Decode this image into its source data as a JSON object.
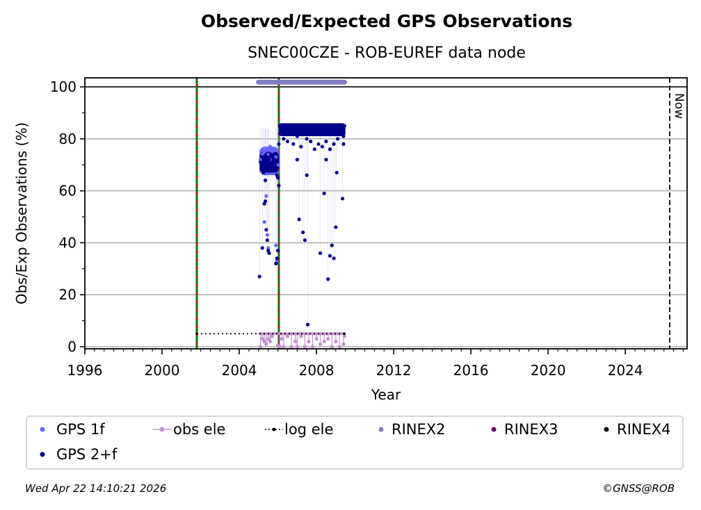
{
  "chart_data": {
    "type": "scatter",
    "title": "Observed/Expected GPS Observations",
    "subtitle": "SNEC00CZE - ROB-EUREF data node",
    "xlabel": "Year",
    "ylabel": "Obs/Exp Observations (%)",
    "xlim": [
      1996,
      2027.2
    ],
    "ylim": [
      -1,
      103.5
    ],
    "xticks": [
      1996,
      2000,
      2004,
      2008,
      2012,
      2016,
      2020,
      2024
    ],
    "xtick_labels": [
      "1996",
      "2000",
      "2004",
      "2008",
      "2012",
      "2016",
      "2020",
      "2024"
    ],
    "yticks": [
      0,
      20,
      40,
      60,
      80,
      100
    ],
    "ytick_labels": [
      "0",
      "20",
      "40",
      "60",
      "80",
      "100"
    ],
    "grid": "horizontal",
    "reference_line_y": 100,
    "now_line": {
      "x": 2026.3,
      "label": "Now"
    },
    "event_lines": [
      {
        "x": 2001.8,
        "colors": [
          "#008000",
          "#d00000"
        ]
      },
      {
        "x": 2006.05,
        "colors": [
          "#008000",
          "#d00000"
        ]
      }
    ],
    "series": [
      {
        "name": "GPS 1f",
        "color": "#6666ff",
        "points": [
          [
            2005.1,
            72
          ],
          [
            2005.2,
            74
          ],
          [
            2005.3,
            75
          ],
          [
            2005.4,
            76
          ],
          [
            2005.5,
            74
          ],
          [
            2005.6,
            77
          ],
          [
            2005.7,
            75
          ],
          [
            2005.8,
            76
          ],
          [
            2005.9,
            73
          ],
          [
            2006.0,
            70
          ],
          [
            2005.3,
            48
          ],
          [
            2005.4,
            58
          ],
          [
            2005.45,
            43
          ],
          [
            2005.5,
            38
          ],
          [
            2005.9,
            39
          ],
          [
            2005.95,
            33
          ],
          [
            2005.2,
            74
          ],
          [
            2005.6,
            72
          ]
        ]
      },
      {
        "name": "GPS 2+f",
        "color": "#00008b",
        "points": [
          [
            2005.05,
            27
          ],
          [
            2005.1,
            71
          ],
          [
            2005.15,
            69
          ],
          [
            2005.2,
            73
          ],
          [
            2005.25,
            70
          ],
          [
            2005.3,
            72
          ],
          [
            2005.35,
            68
          ],
          [
            2005.4,
            71
          ],
          [
            2005.45,
            73
          ],
          [
            2005.5,
            69
          ],
          [
            2005.55,
            72
          ],
          [
            2005.6,
            70
          ],
          [
            2005.65,
            74
          ],
          [
            2005.7,
            71
          ],
          [
            2005.75,
            69
          ],
          [
            2005.8,
            72
          ],
          [
            2005.85,
            70
          ],
          [
            2005.9,
            68
          ],
          [
            2005.95,
            66
          ],
          [
            2006.0,
            65
          ],
          [
            2006.05,
            62
          ],
          [
            2005.2,
            38
          ],
          [
            2005.3,
            55
          ],
          [
            2005.35,
            56
          ],
          [
            2005.4,
            45
          ],
          [
            2005.45,
            41
          ],
          [
            2005.5,
            37
          ],
          [
            2005.55,
            36
          ],
          [
            2005.25,
            67
          ],
          [
            2005.35,
            64
          ],
          [
            2005.9,
            32
          ],
          [
            2005.95,
            34
          ],
          [
            2006.0,
            37
          ],
          [
            2006.05,
            78
          ],
          [
            2006.1,
            82
          ],
          [
            2006.1,
            85
          ],
          [
            2006.2,
            84
          ],
          [
            2006.3,
            85
          ],
          [
            2006.4,
            84
          ],
          [
            2006.5,
            85
          ],
          [
            2006.6,
            84
          ],
          [
            2006.7,
            85
          ],
          [
            2006.8,
            83
          ],
          [
            2006.9,
            85
          ],
          [
            2007.0,
            84
          ],
          [
            2007.1,
            85
          ],
          [
            2007.2,
            84
          ],
          [
            2007.3,
            83
          ],
          [
            2007.4,
            85
          ],
          [
            2007.5,
            84
          ],
          [
            2007.6,
            85
          ],
          [
            2007.7,
            84
          ],
          [
            2007.8,
            83
          ],
          [
            2007.9,
            85
          ],
          [
            2008.0,
            84
          ],
          [
            2008.1,
            85
          ],
          [
            2008.2,
            84
          ],
          [
            2008.3,
            83
          ],
          [
            2008.4,
            84
          ],
          [
            2008.5,
            83
          ],
          [
            2008.6,
            84
          ],
          [
            2008.7,
            82
          ],
          [
            2008.8,
            84
          ],
          [
            2008.9,
            83
          ],
          [
            2009.0,
            84
          ],
          [
            2009.1,
            83
          ],
          [
            2009.2,
            84
          ],
          [
            2009.3,
            85
          ],
          [
            2009.4,
            84
          ],
          [
            2009.45,
            85
          ],
          [
            2006.3,
            80
          ],
          [
            2006.5,
            79
          ],
          [
            2006.8,
            78
          ],
          [
            2007.0,
            81
          ],
          [
            2007.2,
            77
          ],
          [
            2007.5,
            80
          ],
          [
            2007.7,
            79
          ],
          [
            2007.9,
            76
          ],
          [
            2008.1,
            78
          ],
          [
            2008.3,
            77
          ],
          [
            2008.5,
            79
          ],
          [
            2008.7,
            76
          ],
          [
            2008.9,
            78
          ],
          [
            2009.1,
            80
          ],
          [
            2009.4,
            78
          ],
          [
            2009.4,
            81
          ],
          [
            2009.4,
            83
          ],
          [
            2007.1,
            49
          ],
          [
            2007.3,
            44
          ],
          [
            2007.4,
            41
          ],
          [
            2007.5,
            66
          ],
          [
            2007.55,
            8.5
          ],
          [
            2008.2,
            36
          ],
          [
            2008.4,
            59
          ],
          [
            2008.5,
            72
          ],
          [
            2008.6,
            26
          ],
          [
            2008.7,
            35
          ],
          [
            2008.8,
            39
          ],
          [
            2008.9,
            34
          ],
          [
            2009.0,
            46
          ],
          [
            2009.05,
            67
          ],
          [
            2009.35,
            57
          ],
          [
            2007.0,
            72
          ]
        ]
      },
      {
        "name": "obs ele",
        "color": "#c68fd0",
        "points": [
          [
            2005.1,
            0
          ],
          [
            2005.2,
            3
          ],
          [
            2005.3,
            2
          ],
          [
            2005.4,
            1
          ],
          [
            2005.5,
            3
          ],
          [
            2005.6,
            2
          ],
          [
            2005.7,
            4
          ],
          [
            2006.0,
            0.5
          ],
          [
            2006.1,
            0
          ],
          [
            2006.2,
            3
          ],
          [
            2006.3,
            0
          ],
          [
            2006.5,
            4
          ],
          [
            2006.7,
            0
          ],
          [
            2006.9,
            2
          ],
          [
            2007.0,
            0
          ],
          [
            2007.2,
            4
          ],
          [
            2007.4,
            0
          ],
          [
            2007.6,
            2
          ],
          [
            2007.8,
            0
          ],
          [
            2008.0,
            3
          ],
          [
            2008.2,
            1
          ],
          [
            2008.4,
            2
          ],
          [
            2008.6,
            3
          ],
          [
            2008.8,
            0
          ],
          [
            2009.0,
            2
          ],
          [
            2009.2,
            0
          ],
          [
            2009.4,
            1
          ],
          [
            2009.45,
            4
          ]
        ]
      },
      {
        "name": "log ele",
        "color": "#000000",
        "points": [
          [
            2001.8,
            5
          ],
          [
            2009.45,
            5
          ]
        ]
      },
      {
        "name": "RINEX2",
        "color": "#8080c0",
        "points": [
          [
            2005.0,
            101.8
          ],
          [
            2009.45,
            101.8
          ]
        ]
      },
      {
        "name": "RINEX3",
        "color": "#6a006a",
        "points": []
      },
      {
        "name": "RINEX4",
        "color": "#200020",
        "points": []
      }
    ],
    "legend_position": "bottom"
  },
  "footer": {
    "timestamp": "Wed Apr 22 14:10:21 2026",
    "credit": "©GNSS@ROB"
  }
}
